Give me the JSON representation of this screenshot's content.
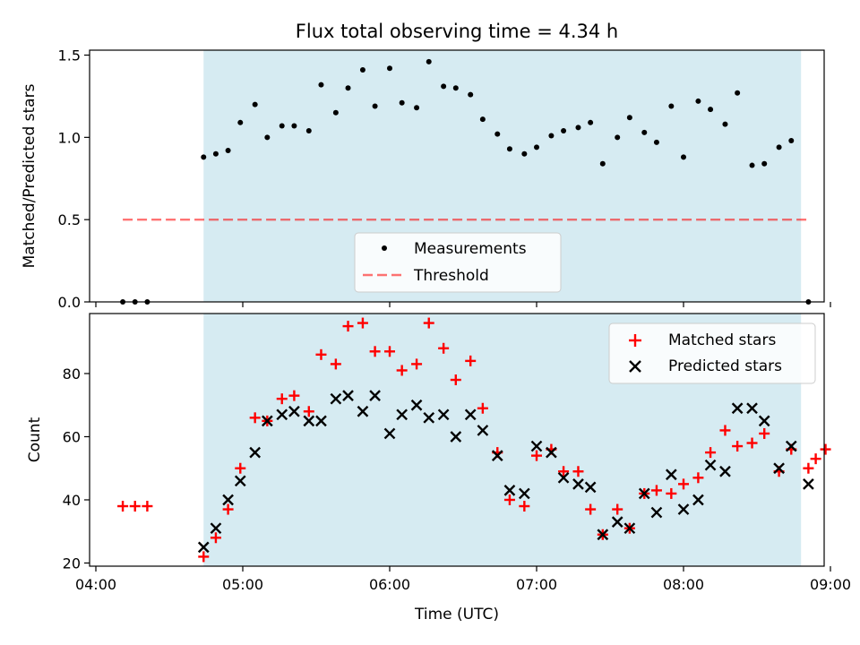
{
  "title": "Flux total observing time = 4.34 h",
  "colors": {
    "shade": "#add8e6",
    "threshold": "#ff0000",
    "matched": "#ff0000",
    "predicted": "#000000",
    "points": "#000000"
  },
  "chart_data": [
    {
      "type": "scatter",
      "title": "Flux total observing time = 4.34 h",
      "xlabel": "",
      "ylabel": "Matched/Predicted stars",
      "ylim": [
        0,
        1.53
      ],
      "yticks": [
        "0.0",
        "0.5",
        "1.0",
        "1.5"
      ],
      "shaded_range": [
        "04:44",
        "08:48"
      ],
      "legend": {
        "position": "bottom-center",
        "entries": [
          "Measurements",
          "Threshold"
        ]
      },
      "threshold": {
        "name": "Threshold",
        "value": 0.5,
        "x_range": [
          "04:11",
          "08:51"
        ],
        "style": "dashed"
      },
      "series": [
        {
          "name": "Measurements",
          "x": [
            "04:11",
            "04:16",
            "04:21",
            "04:44",
            "04:49",
            "04:54",
            "04:59",
            "05:05",
            "05:10",
            "05:16",
            "05:21",
            "05:27",
            "05:32",
            "05:38",
            "05:43",
            "05:49",
            "05:54",
            "06:00",
            "06:05",
            "06:11",
            "06:16",
            "06:22",
            "06:27",
            "06:33",
            "06:38",
            "06:44",
            "06:49",
            "06:55",
            "07:00",
            "07:06",
            "07:11",
            "07:17",
            "07:22",
            "07:27",
            "07:33",
            "07:38",
            "07:44",
            "07:49",
            "07:55",
            "08:00",
            "08:06",
            "08:11",
            "08:17",
            "08:22",
            "08:28",
            "08:33",
            "08:39",
            "08:44",
            "08:51"
          ],
          "y": [
            0.0,
            0.0,
            0.0,
            0.88,
            0.9,
            0.92,
            1.09,
            1.2,
            1.0,
            1.07,
            1.07,
            1.04,
            1.32,
            1.15,
            1.3,
            1.41,
            1.19,
            1.42,
            1.21,
            1.18,
            1.46,
            1.31,
            1.3,
            1.26,
            1.11,
            1.02,
            0.93,
            0.9,
            0.94,
            1.01,
            1.04,
            1.06,
            1.09,
            0.84,
            1.0,
            1.12,
            1.03,
            0.97,
            1.19,
            0.88,
            1.22,
            1.17,
            1.08,
            1.27,
            0.83,
            0.84,
            0.94,
            0.98,
            0.0
          ]
        }
      ]
    },
    {
      "type": "scatter",
      "xlabel": "Time (UTC)",
      "ylabel": "Count",
      "xlim": [
        "04:00",
        "09:00"
      ],
      "xticks": [
        "04:00",
        "05:00",
        "06:00",
        "07:00",
        "08:00",
        "09:00"
      ],
      "ylim": [
        19,
        99
      ],
      "yticks": [
        "20",
        "40",
        "60",
        "80"
      ],
      "shaded_range": [
        "04:44",
        "08:48"
      ],
      "legend": {
        "position": "top-right",
        "entries": [
          "Matched stars",
          "Predicted stars"
        ]
      },
      "series": [
        {
          "name": "Matched stars",
          "marker": "plus",
          "x": [
            "04:11",
            "04:16",
            "04:21",
            "04:44",
            "04:49",
            "04:54",
            "04:59",
            "05:05",
            "05:10",
            "05:16",
            "05:21",
            "05:27",
            "05:32",
            "05:38",
            "05:43",
            "05:49",
            "05:54",
            "06:00",
            "06:05",
            "06:11",
            "06:16",
            "06:22",
            "06:27",
            "06:33",
            "06:38",
            "06:44",
            "06:49",
            "06:55",
            "07:00",
            "07:06",
            "07:11",
            "07:17",
            "07:22",
            "07:27",
            "07:33",
            "07:38",
            "07:44",
            "07:49",
            "07:55",
            "08:00",
            "08:06",
            "08:11",
            "08:17",
            "08:22",
            "08:28",
            "08:33",
            "08:39",
            "08:44",
            "08:51",
            "08:54",
            "08:58"
          ],
          "y": [
            38,
            38,
            38,
            22,
            28,
            37,
            50,
            66,
            65,
            72,
            73,
            68,
            86,
            83,
            95,
            96,
            87,
            87,
            81,
            83,
            96,
            88,
            78,
            84,
            69,
            55,
            40,
            38,
            54,
            56,
            49,
            49,
            37,
            29,
            37,
            31,
            42,
            43,
            42,
            45,
            47,
            55,
            62,
            57,
            58,
            61,
            49,
            56,
            50,
            53,
            56
          ]
        },
        {
          "name": "Predicted stars",
          "marker": "x",
          "x": [
            "04:44",
            "04:49",
            "04:54",
            "04:59",
            "05:05",
            "05:10",
            "05:16",
            "05:21",
            "05:27",
            "05:32",
            "05:38",
            "05:43",
            "05:49",
            "05:54",
            "06:00",
            "06:05",
            "06:11",
            "06:16",
            "06:22",
            "06:27",
            "06:33",
            "06:38",
            "06:44",
            "06:49",
            "06:55",
            "07:00",
            "07:06",
            "07:11",
            "07:17",
            "07:22",
            "07:27",
            "07:33",
            "07:38",
            "07:44",
            "07:49",
            "07:55",
            "08:00",
            "08:06",
            "08:11",
            "08:17",
            "08:22",
            "08:28",
            "08:33",
            "08:39",
            "08:44",
            "08:51"
          ],
          "y": [
            25,
            31,
            40,
            46,
            55,
            65,
            67,
            68,
            65,
            65,
            72,
            73,
            68,
            73,
            61,
            67,
            70,
            66,
            67,
            60,
            67,
            62,
            54,
            43,
            42,
            57,
            55,
            47,
            45,
            44,
            29,
            33,
            31,
            42,
            36,
            48,
            37,
            40,
            51,
            49,
            69,
            69,
            65,
            50,
            57,
            45
          ]
        }
      ]
    }
  ]
}
